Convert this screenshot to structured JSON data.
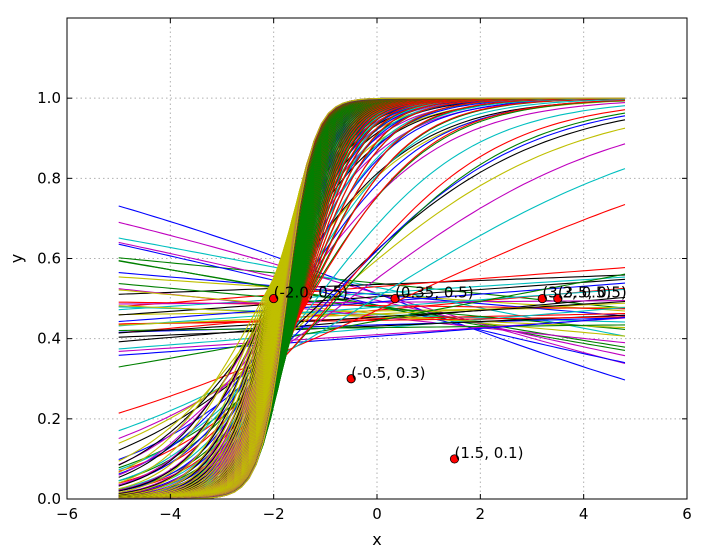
{
  "chart_data": {
    "type": "line",
    "title": "",
    "xlabel": "x",
    "ylabel": "y",
    "xlim": [
      -6,
      6
    ],
    "ylim": [
      0.0,
      1.2
    ],
    "xticks": [
      -6,
      -4,
      -2,
      0,
      2,
      4,
      6
    ],
    "xtick_labels": [
      "−6",
      "−4",
      "−2",
      "0",
      "2",
      "4",
      "6"
    ],
    "yticks": [
      0.0,
      0.2,
      0.4,
      0.6,
      0.8,
      1.0
    ],
    "ytick_labels": [
      "0.0",
      "0.2",
      "0.4",
      "0.6",
      "0.8",
      "1.0"
    ],
    "grid": true,
    "legend": "none",
    "x_range": [
      -5,
      4.8
    ],
    "curve_family": "logistic y = 1 / (1 + exp(-(w0 + w1*x)))",
    "curve_count": 300,
    "color_cycle": [
      "#0000ff",
      "#008000",
      "#ff0000",
      "#00bfbf",
      "#bf00bf",
      "#bfbf00",
      "#000000"
    ],
    "points": [
      {
        "x": -2.0,
        "y": 0.5,
        "label": "(-2.0, 0.5)"
      },
      {
        "x": 0.35,
        "y": 0.5,
        "label": "(0.35, 0.5)"
      },
      {
        "x": -0.5,
        "y": 0.3,
        "label": "(-0.5, 0.3)"
      },
      {
        "x": 1.5,
        "y": 0.1,
        "label": "(1.5, 0.1)"
      },
      {
        "x": 3.2,
        "y": 0.5,
        "label": "(3.2, 0.5)"
      },
      {
        "x": 3.5,
        "y": 0.5,
        "label": "(3.5, 0.5)"
      }
    ],
    "point_color": "#ff0000"
  }
}
